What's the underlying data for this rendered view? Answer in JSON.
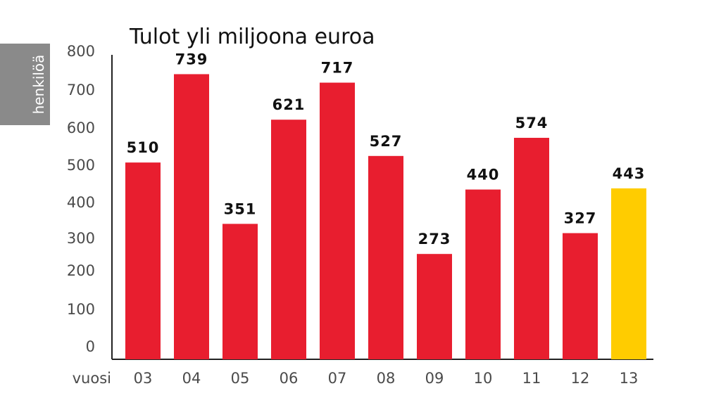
{
  "chart_data": {
    "type": "bar",
    "title": "Tulot yli miljoona euroa",
    "ylabel": "henkilöä",
    "xlabel": "vuosi",
    "categories": [
      "03",
      "04",
      "05",
      "06",
      "07",
      "08",
      "09",
      "10",
      "11",
      "12",
      "13"
    ],
    "values": [
      510,
      739,
      351,
      621,
      717,
      527,
      273,
      440,
      574,
      327,
      443
    ],
    "yticks": [
      "800",
      "700",
      "600",
      "500",
      "400",
      "300",
      "200",
      "100",
      "0"
    ],
    "ylim": [
      0,
      800
    ],
    "grid": false,
    "colors": {
      "bar": "#E81E2F",
      "highlight": "#FFCC00",
      "ylabel_box": "#8A8A8A",
      "axis": "#222222"
    },
    "highlight_category": "13"
  }
}
